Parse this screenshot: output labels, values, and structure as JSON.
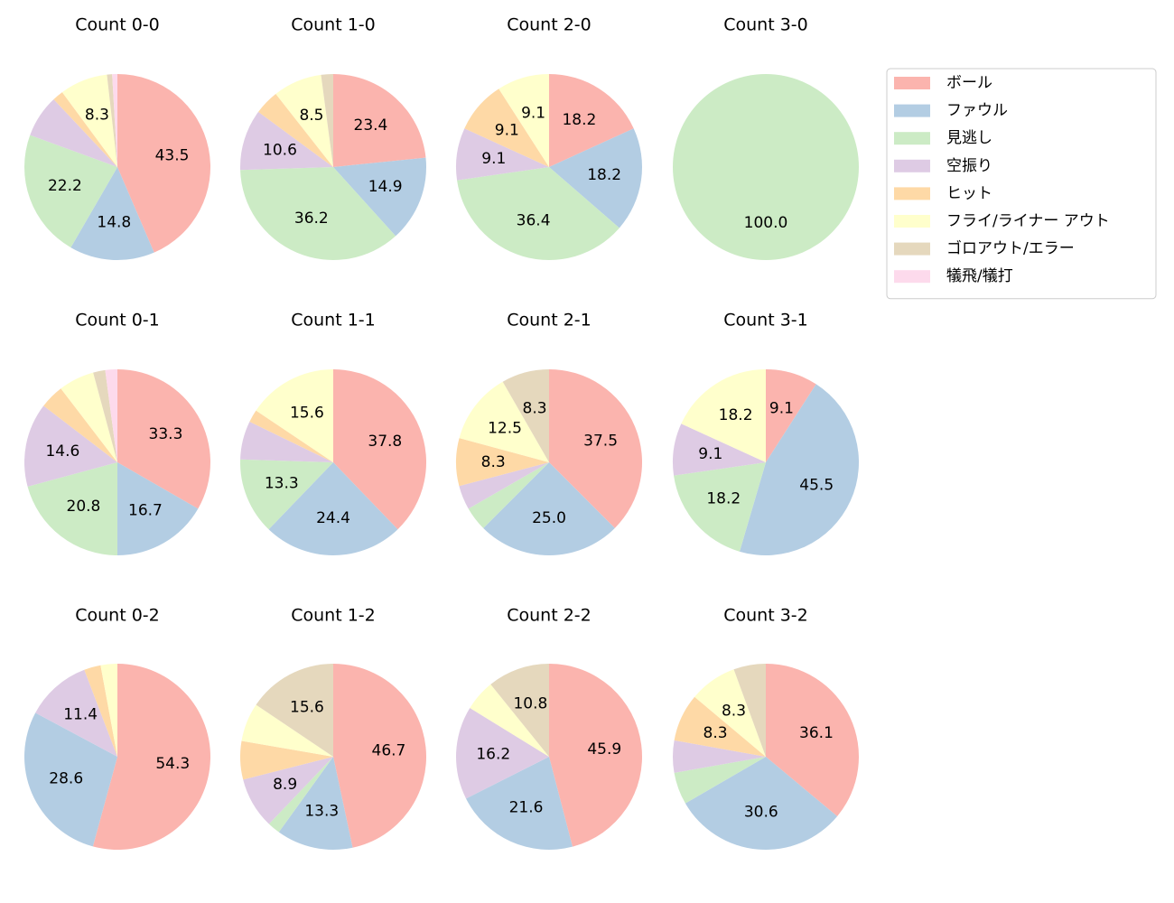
{
  "legend": {
    "categories": [
      "ボール",
      "ファウル",
      "見逃し",
      "空振り",
      "ヒット",
      "フライ/ライナー アウト",
      "ゴロアウト/エラー",
      "犠飛/犠打"
    ],
    "colors": [
      "#fbb4ae",
      "#b3cde3",
      "#ccebc5",
      "#decbe4",
      "#fed9a6",
      "#ffffcc",
      "#e5d8bd",
      "#fddaec"
    ],
    "loc": "upper right"
  },
  "chart_data": [
    {
      "type": "pie",
      "title": "Count 0-0",
      "values": [
        43.5,
        14.8,
        22.2,
        7.4,
        1.9,
        8.3,
        0.9,
        0.9
      ],
      "value_labels": [
        "43.5",
        "14.8",
        "22.2",
        null,
        null,
        "8.3",
        null,
        null
      ]
    },
    {
      "type": "pie",
      "title": "Count 1-0",
      "values": [
        23.4,
        14.9,
        36.2,
        10.6,
        4.3,
        8.5,
        2.1,
        0
      ],
      "value_labels": [
        "23.4",
        "14.9",
        "36.2",
        "10.6",
        null,
        "8.5",
        null,
        null
      ]
    },
    {
      "type": "pie",
      "title": "Count 2-0",
      "values": [
        18.2,
        18.2,
        36.4,
        9.1,
        9.1,
        9.1,
        0,
        0
      ],
      "value_labels": [
        "18.2",
        "18.2",
        "36.4",
        "9.1",
        "9.1",
        "9.1",
        null,
        null
      ]
    },
    {
      "type": "pie",
      "title": "Count 3-0",
      "values": [
        0,
        0,
        100,
        0,
        0,
        0,
        0,
        0
      ],
      "value_labels": [
        null,
        null,
        "100.0",
        null,
        null,
        null,
        null,
        null
      ]
    },
    {
      "type": "pie",
      "title": "Count 0-1",
      "values": [
        33.3,
        16.7,
        20.8,
        14.6,
        4.2,
        6.2,
        2.1,
        2.1
      ],
      "value_labels": [
        "33.3",
        "16.7",
        "20.8",
        "14.6",
        null,
        null,
        null,
        null
      ]
    },
    {
      "type": "pie",
      "title": "Count 1-1",
      "values": [
        37.8,
        24.4,
        13.3,
        6.7,
        2.2,
        15.6,
        0,
        0
      ],
      "value_labels": [
        "37.8",
        "24.4",
        "13.3",
        null,
        null,
        "15.6",
        null,
        null
      ]
    },
    {
      "type": "pie",
      "title": "Count 2-1",
      "values": [
        37.5,
        25.0,
        4.2,
        4.2,
        8.3,
        12.5,
        8.3,
        0
      ],
      "value_labels": [
        "37.5",
        "25.0",
        null,
        null,
        "8.3",
        "12.5",
        "8.3",
        null
      ]
    },
    {
      "type": "pie",
      "title": "Count 3-1",
      "values": [
        9.1,
        45.5,
        18.2,
        9.1,
        0,
        18.2,
        0,
        0
      ],
      "value_labels": [
        "9.1",
        "45.5",
        "18.2",
        "9.1",
        null,
        "18.2",
        null,
        null
      ]
    },
    {
      "type": "pie",
      "title": "Count 0-2",
      "values": [
        54.3,
        28.6,
        0,
        11.4,
        2.9,
        2.9,
        0,
        0
      ],
      "value_labels": [
        "54.3",
        "28.6",
        null,
        "11.4",
        null,
        null,
        null,
        null
      ]
    },
    {
      "type": "pie",
      "title": "Count 1-2",
      "values": [
        46.7,
        13.3,
        2.2,
        8.9,
        6.7,
        6.7,
        15.6,
        0
      ],
      "value_labels": [
        "46.7",
        "13.3",
        null,
        "8.9",
        null,
        null,
        "15.6",
        null
      ]
    },
    {
      "type": "pie",
      "title": "Count 2-2",
      "values": [
        45.9,
        21.6,
        0,
        16.2,
        0,
        5.4,
        10.8,
        0
      ],
      "value_labels": [
        "45.9",
        "21.6",
        null,
        "16.2",
        null,
        null,
        "10.8",
        null
      ]
    },
    {
      "type": "pie",
      "title": "Count 3-2",
      "values": [
        36.1,
        30.6,
        5.6,
        5.6,
        8.3,
        8.3,
        5.6,
        0
      ],
      "value_labels": [
        "36.1",
        "30.6",
        null,
        null,
        "8.3",
        "8.3",
        null,
        null
      ]
    }
  ]
}
